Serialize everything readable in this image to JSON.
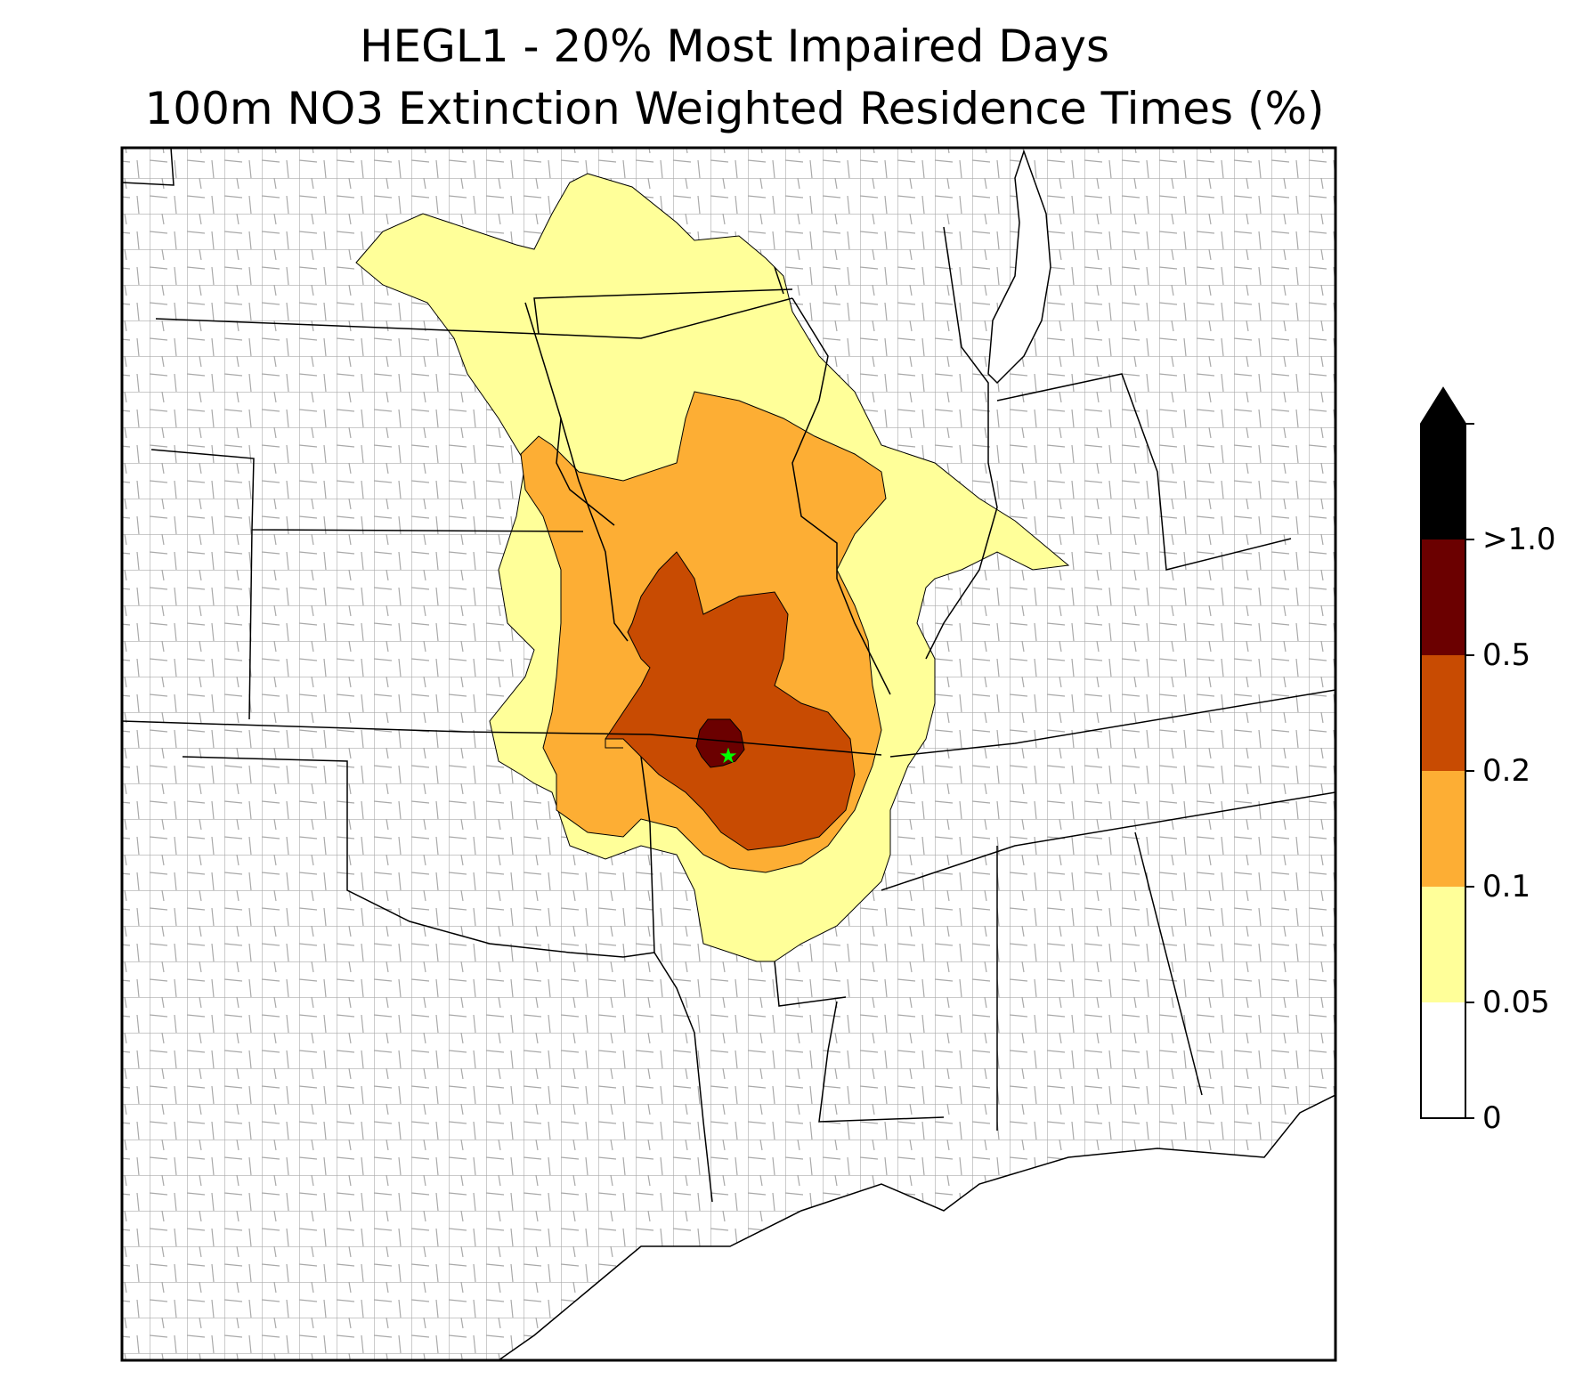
{
  "title_line1": "HEGL1 - 20% Most Impaired Days",
  "title_line2": "100m NO3 Extinction Weighted Residence Times (%)",
  "legend": {
    "bins": [
      {
        "label": "0",
        "color": "#ffffff"
      },
      {
        "label": "0.05",
        "color": "#ffff99"
      },
      {
        "label": "0.1",
        "color": "#fdae34"
      },
      {
        "label": "0.2",
        "color": "#c84b02"
      },
      {
        "label": "0.5",
        "color": "#6b0000"
      },
      {
        "label": ">1.0",
        "color": "#000000"
      }
    ],
    "extend": "max"
  },
  "site_marker": {
    "color": "#00ff00",
    "icon": "star-icon"
  },
  "colors": {
    "state_border": "#000000",
    "county_border": "#a9a9a9"
  }
}
